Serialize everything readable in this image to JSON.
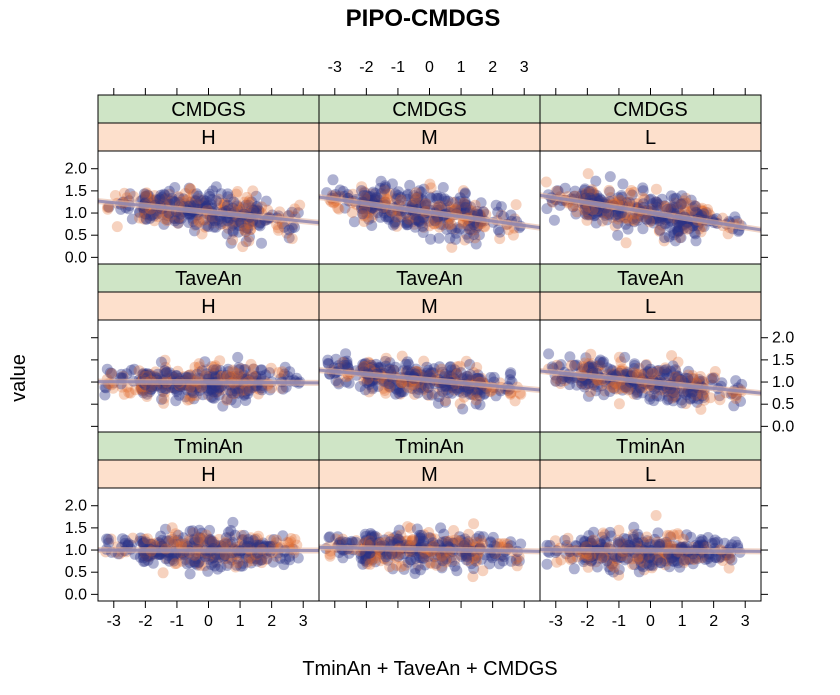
{
  "chart_data": {
    "type": "scatter",
    "title": "PIPO-CMDGS",
    "xlabel": "TminAn + TaveAn + CMDGS",
    "ylabel": "value",
    "xlim": [
      -3.5,
      3.5
    ],
    "ylim": [
      -0.15,
      2.4
    ],
    "x_ticks": [
      "-3",
      "-2",
      "-1",
      "0",
      "1",
      "2",
      "3"
    ],
    "y_ticks": [
      "0.0",
      "0.5",
      "1.0",
      "1.5",
      "2.0"
    ],
    "grid": false,
    "layout": "3x3 trellis",
    "strip_colors": {
      "variable": "#cfe5c6",
      "level": "#fde0cc"
    },
    "series_colors": [
      "#2b3187",
      "#e06a2c"
    ],
    "panels": [
      {
        "variable": "CMDGS",
        "level": "H",
        "fit": [
          -3.5,
          1.27,
          3.5,
          0.78
        ]
      },
      {
        "variable": "CMDGS",
        "level": "M",
        "fit": [
          -3.5,
          1.36,
          3.5,
          0.67
        ]
      },
      {
        "variable": "CMDGS",
        "level": "L",
        "fit": [
          -3.5,
          1.4,
          3.5,
          0.62
        ]
      },
      {
        "variable": "TaveAn",
        "level": "H",
        "fit": [
          -3.5,
          1.01,
          3.5,
          0.98
        ]
      },
      {
        "variable": "TaveAn",
        "level": "M",
        "fit": [
          -3.5,
          1.27,
          3.5,
          0.82
        ]
      },
      {
        "variable": "TaveAn",
        "level": "L",
        "fit": [
          -3.5,
          1.25,
          3.5,
          0.75
        ]
      },
      {
        "variable": "TminAn",
        "level": "H",
        "fit": [
          -3.5,
          1.0,
          3.5,
          0.99
        ]
      },
      {
        "variable": "TminAn",
        "level": "M",
        "fit": [
          -3.5,
          1.06,
          3.5,
          0.97
        ]
      },
      {
        "variable": "TminAn",
        "level": "L",
        "fit": [
          -3.5,
          1.01,
          3.5,
          0.97
        ]
      }
    ]
  }
}
